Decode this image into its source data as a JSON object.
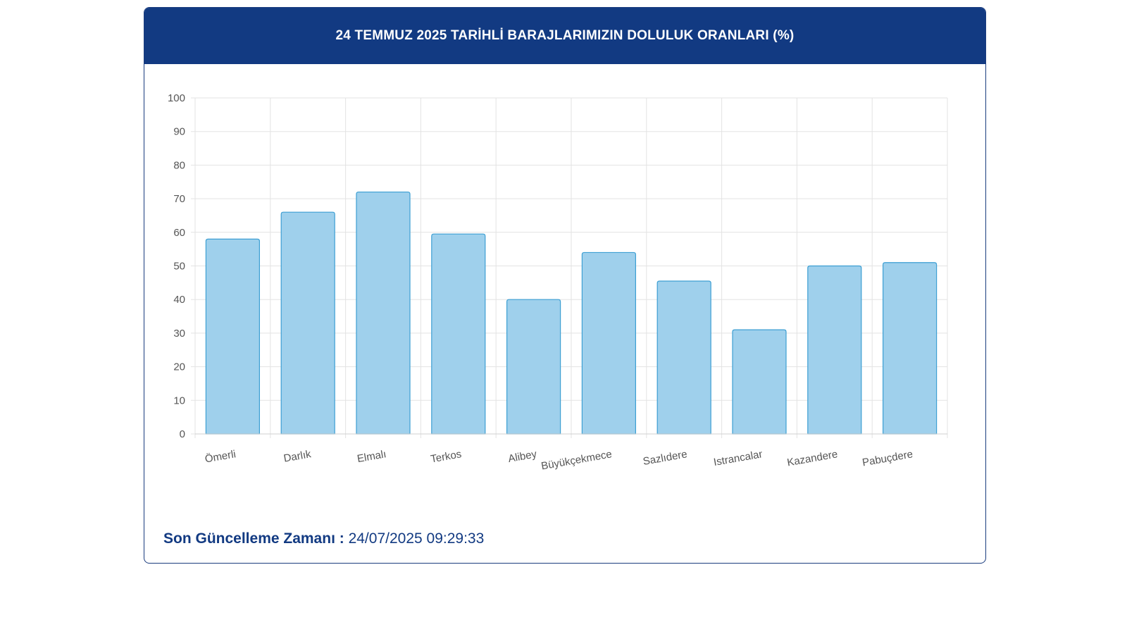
{
  "header": {
    "title": "24 TEMMUZ 2025 TARİHLİ BARAJLARIMIZIN DOLULUK ORANLARI (%)"
  },
  "footer": {
    "label": "Son Güncelleme Zamanı :",
    "timestamp": "24/07/2025 09:29:33"
  },
  "colors": {
    "header_bg": "#123a82",
    "bar_fill": "#9fd0ec",
    "bar_stroke": "#3d9fd3",
    "grid": "#e3e3e3"
  },
  "chart_data": {
    "type": "bar",
    "title": "24 TEMMUZ 2025 TARİHLİ BARAJLARIMIZIN DOLULUK ORANLARI (%)",
    "categories": [
      "Ömerli",
      "Darlık",
      "Elmalı",
      "Terkos",
      "Alibey",
      "Büyükçekmece",
      "Sazlıdere",
      "Istrancalar",
      "Kazandere",
      "Pabuçdere"
    ],
    "values": [
      58,
      66,
      72,
      59.5,
      40,
      54,
      45.5,
      31,
      50,
      51
    ],
    "yticks": [
      "0",
      "10",
      "20",
      "30",
      "40",
      "50",
      "60",
      "70",
      "80",
      "90",
      "100"
    ],
    "ylim": [
      0,
      100
    ],
    "xlabel": "",
    "ylabel": "",
    "grid": true
  }
}
